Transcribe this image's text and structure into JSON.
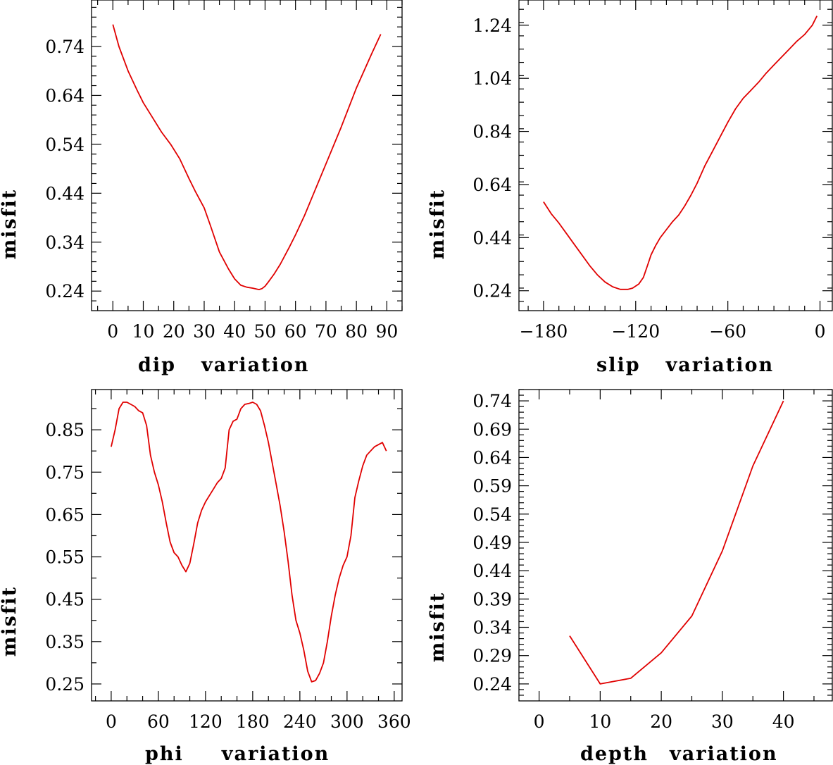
{
  "chart_data": [
    {
      "id": "dip",
      "type": "line",
      "xlabel_word": "dip",
      "xlabel_suffix": "variation",
      "ylabel": "misfit",
      "xlim": [
        -7,
        95
      ],
      "ylim": [
        0.2,
        0.835
      ],
      "xticks": [
        0,
        10,
        20,
        30,
        40,
        50,
        60,
        70,
        80,
        90
      ],
      "xtick_labels": [
        "0",
        "10",
        "20",
        "30",
        "40",
        "50",
        "60",
        "70",
        "80",
        "90"
      ],
      "xminor": 5,
      "yticks": [
        0.24,
        0.34,
        0.44,
        0.54,
        0.64,
        0.74
      ],
      "ytick_labels": [
        "0.24",
        "0.34",
        "0.44",
        "0.54",
        "0.64",
        "0.74"
      ],
      "yminor": 0.02,
      "series": [
        {
          "name": "dip misfit",
          "color": "#e00000",
          "x": [
            0,
            2,
            5,
            8,
            10,
            13,
            16,
            19,
            22,
            25,
            27,
            30,
            32,
            35,
            38,
            40,
            42,
            44,
            46,
            48,
            49,
            50,
            51,
            53,
            55,
            58,
            60,
            63,
            66,
            70,
            75,
            80,
            85,
            88
          ],
          "y": [
            0.785,
            0.74,
            0.69,
            0.65,
            0.625,
            0.595,
            0.565,
            0.54,
            0.51,
            0.47,
            0.445,
            0.41,
            0.375,
            0.32,
            0.285,
            0.265,
            0.252,
            0.248,
            0.246,
            0.243,
            0.245,
            0.25,
            0.258,
            0.275,
            0.295,
            0.33,
            0.355,
            0.395,
            0.44,
            0.5,
            0.575,
            0.655,
            0.725,
            0.765
          ]
        }
      ]
    },
    {
      "id": "slip",
      "type": "line",
      "xlabel_word": "slip",
      "xlabel_suffix": "variation",
      "ylabel": "misfit",
      "xlim": [
        -196,
        8
      ],
      "ylim": [
        0.165,
        1.335
      ],
      "xticks": [
        -180,
        -120,
        -60,
        0
      ],
      "xtick_labels": [
        "−180",
        "−120",
        "−60",
        "0"
      ],
      "xminor": 10,
      "yticks": [
        0.24,
        0.44,
        0.64,
        0.84,
        1.04,
        1.24
      ],
      "ytick_labels": [
        "0.24",
        "0.44",
        "0.64",
        "0.84",
        "1.04",
        "1.24"
      ],
      "yminor": 0.05,
      "series": [
        {
          "name": "slip misfit",
          "color": "#e00000",
          "x": [
            -180,
            -175,
            -170,
            -165,
            -160,
            -155,
            -150,
            -145,
            -140,
            -135,
            -130,
            -125,
            -122,
            -118,
            -115,
            -112,
            -110,
            -107,
            -104,
            -100,
            -96,
            -92,
            -88,
            -84,
            -80,
            -75,
            -70,
            -65,
            -60,
            -55,
            -50,
            -45,
            -40,
            -35,
            -30,
            -25,
            -20,
            -15,
            -10,
            -5,
            -2
          ],
          "y": [
            0.575,
            0.53,
            0.495,
            0.455,
            0.415,
            0.375,
            0.335,
            0.3,
            0.273,
            0.255,
            0.245,
            0.245,
            0.25,
            0.265,
            0.29,
            0.34,
            0.375,
            0.41,
            0.44,
            0.47,
            0.5,
            0.525,
            0.56,
            0.6,
            0.645,
            0.71,
            0.765,
            0.82,
            0.875,
            0.925,
            0.965,
            0.995,
            1.025,
            1.06,
            1.09,
            1.12,
            1.15,
            1.18,
            1.205,
            1.24,
            1.275
          ]
        }
      ]
    },
    {
      "id": "phi",
      "type": "line",
      "xlabel_word": "phi",
      "xlabel_suffix": "variation",
      "ylabel": "misfit",
      "xlim": [
        -25,
        370
      ],
      "ylim": [
        0.21,
        0.945
      ],
      "xticks": [
        0,
        60,
        120,
        180,
        240,
        300,
        360
      ],
      "xtick_labels": [
        "0",
        "60",
        "120",
        "180",
        "240",
        "300",
        "360"
      ],
      "xminor": 20,
      "yticks": [
        0.25,
        0.35,
        0.45,
        0.55,
        0.65,
        0.75,
        0.85
      ],
      "ytick_labels": [
        "0.25",
        "0.35",
        "0.45",
        "0.55",
        "0.65",
        "0.75",
        "0.85"
      ],
      "yminor": 0.05,
      "series": [
        {
          "name": "phi misfit",
          "color": "#e00000",
          "x": [
            0,
            5,
            10,
            15,
            20,
            25,
            30,
            35,
            40,
            45,
            50,
            55,
            60,
            65,
            70,
            75,
            80,
            85,
            90,
            95,
            100,
            105,
            110,
            115,
            120,
            125,
            130,
            135,
            140,
            145,
            150,
            155,
            160,
            165,
            170,
            175,
            180,
            185,
            190,
            195,
            200,
            205,
            210,
            215,
            220,
            225,
            230,
            235,
            240,
            245,
            250,
            255,
            260,
            265,
            270,
            275,
            280,
            285,
            290,
            295,
            300,
            305,
            310,
            315,
            320,
            325,
            330,
            335,
            340,
            345,
            350
          ],
          "y": [
            0.81,
            0.85,
            0.9,
            0.915,
            0.915,
            0.91,
            0.905,
            0.895,
            0.89,
            0.86,
            0.79,
            0.75,
            0.72,
            0.68,
            0.63,
            0.585,
            0.56,
            0.55,
            0.53,
            0.515,
            0.535,
            0.58,
            0.63,
            0.66,
            0.68,
            0.695,
            0.71,
            0.725,
            0.735,
            0.76,
            0.85,
            0.87,
            0.875,
            0.9,
            0.91,
            0.912,
            0.915,
            0.91,
            0.895,
            0.86,
            0.82,
            0.77,
            0.72,
            0.67,
            0.61,
            0.54,
            0.46,
            0.4,
            0.37,
            0.33,
            0.28,
            0.255,
            0.258,
            0.275,
            0.3,
            0.35,
            0.41,
            0.46,
            0.5,
            0.53,
            0.55,
            0.6,
            0.69,
            0.73,
            0.765,
            0.79,
            0.8,
            0.81,
            0.815,
            0.82,
            0.8
          ]
        }
      ]
    },
    {
      "id": "depth",
      "type": "line",
      "xlabel_word": "depth",
      "xlabel_suffix": "variation",
      "ylabel": "misfit",
      "xlim": [
        -3.3,
        48
      ],
      "ylim": [
        0.21,
        0.76
      ],
      "xticks": [
        0,
        10,
        20,
        30,
        40
      ],
      "xtick_labels": [
        "0",
        "10",
        "20",
        "30",
        "40"
      ],
      "xminor": 5,
      "yticks": [
        0.24,
        0.29,
        0.34,
        0.39,
        0.44,
        0.49,
        0.54,
        0.59,
        0.64,
        0.69,
        0.74
      ],
      "ytick_labels": [
        "0.24",
        "0.29",
        "0.34",
        "0.39",
        "0.44",
        "0.49",
        "0.54",
        "0.59",
        "0.64",
        "0.69",
        "0.74"
      ],
      "yminor": 0.01,
      "series": [
        {
          "name": "depth misfit",
          "color": "#e00000",
          "x": [
            5,
            10,
            15,
            20,
            25,
            30,
            35,
            40
          ],
          "y": [
            0.325,
            0.24,
            0.25,
            0.295,
            0.36,
            0.475,
            0.625,
            0.74
          ]
        }
      ]
    }
  ]
}
